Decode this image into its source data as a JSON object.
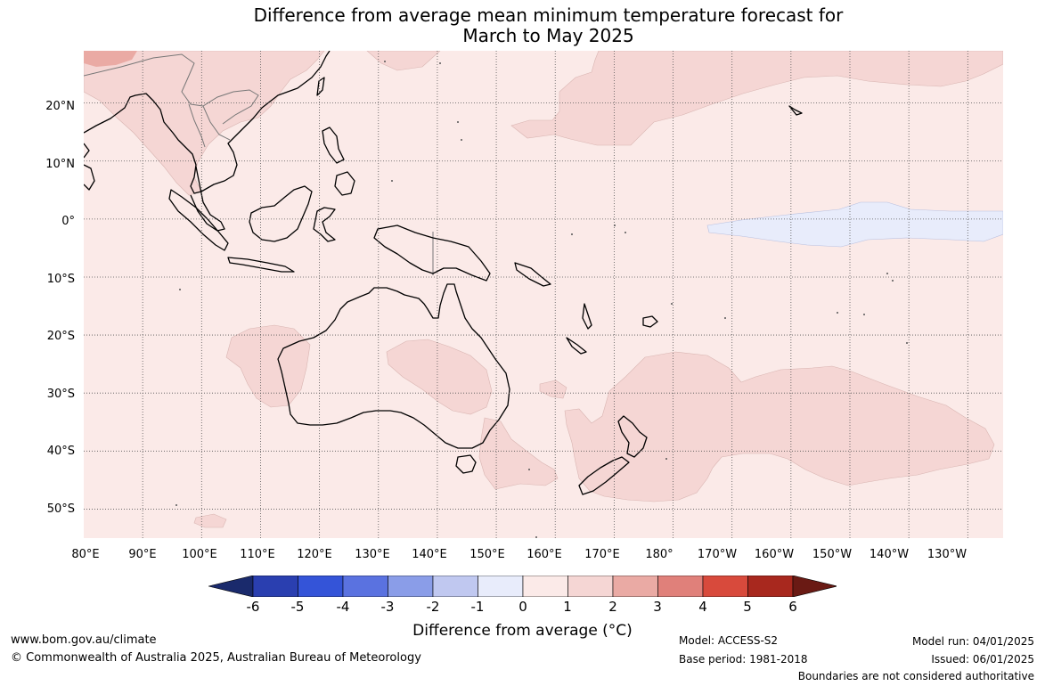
{
  "title": {
    "line1": "Difference from average mean minimum temperature forecast for",
    "line2": "March to May 2025"
  },
  "map": {
    "projection": "equirectangular",
    "lon_range": [
      80,
      236
    ],
    "lat_range": [
      -55,
      29
    ],
    "gridlines": "dotted",
    "colors": {
      "background_anomaly_0_1": "#fbeae8",
      "anomaly_1_2": "#f5d6d4",
      "anomaly_2_3": "#eaaaa4",
      "anomaly_neg1_0": "#e8ecfb",
      "land_outline": "#000000",
      "border": "#777777"
    },
    "lat_labels": [
      "20°N",
      "10°N",
      "0°",
      "10°S",
      "20°S",
      "30°S",
      "40°S",
      "50°S"
    ],
    "lon_labels": [
      "80°E",
      "90°E",
      "100°E",
      "110°E",
      "120°E",
      "130°E",
      "140°E",
      "150°E",
      "160°E",
      "170°E",
      "180°",
      "170°W",
      "160°W",
      "150°W",
      "140°W",
      "130°W"
    ]
  },
  "colorbar": {
    "ticks": [
      "-6",
      "-5",
      "-4",
      "-3",
      "-2",
      "-1",
      "0",
      "1",
      "2",
      "3",
      "4",
      "5",
      "6"
    ],
    "colors": [
      "#1a2a6c",
      "#2a3fb0",
      "#3454d8",
      "#5a72e0",
      "#8a9de8",
      "#c0c8f0",
      "#e8ecfb",
      "#fbeae8",
      "#f5d6d4",
      "#eaaaa4",
      "#e0807a",
      "#d84a3c",
      "#a8281e",
      "#6a1a14"
    ],
    "label": "Difference from average (°C)"
  },
  "footer": {
    "url": "www.bom.gov.au/climate",
    "copyright": "© Commonwealth of Australia 2025, Australian Bureau of Meteorology",
    "model": "Model: ACCESS-S2",
    "base_period": "Base period: 1981-2018",
    "model_run": "Model run: 04/01/2025",
    "issued": "Issued: 06/01/2025",
    "disclaimer": "Boundaries are not considered authoritative"
  }
}
